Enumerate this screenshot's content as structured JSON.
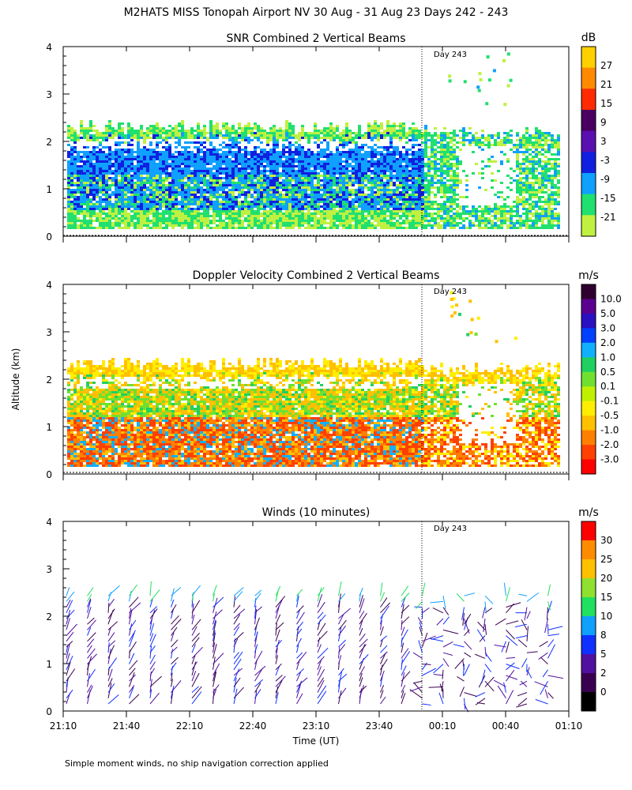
{
  "page_title": "M2HATS MISS Tonopah Airport NV  30 Aug - 31 Aug 23 Days 242 - 243",
  "footer_note": "Simple moment winds, no ship navigation correction applied",
  "chart_data": [
    {
      "type": "heatmap",
      "title": "SNR Combined 2 Vertical Beams",
      "ylabel": "",
      "ylim": [
        0,
        4
      ],
      "yticks": [
        "0",
        "1",
        "2",
        "3",
        "4"
      ],
      "day_marker": {
        "label": "Day 243",
        "time": "00:00"
      },
      "colorbar": {
        "unit": "dB",
        "labels": [
          "27",
          "21",
          "15",
          "9",
          "3",
          "-3",
          "-9",
          "-15",
          "-21"
        ],
        "colors": [
          "#ffd000",
          "#ff8a00",
          "#ff2a00",
          "#4a0060",
          "#5a10b0",
          "#1020e0",
          "#10a0ff",
          "#20e070",
          "#c0f040"
        ]
      },
      "profile_km": {
        "base": 0.15,
        "top_day242": 2.3,
        "top_day243": 2.2
      }
    },
    {
      "type": "heatmap",
      "title": "Doppler Velocity Combined 2 Vertical Beams",
      "ylabel": "Altitude (km)",
      "ylim": [
        0,
        4
      ],
      "yticks": [
        "0",
        "1",
        "2",
        "3",
        "4"
      ],
      "day_marker": {
        "label": "Day 243",
        "time": "00:00"
      },
      "colorbar": {
        "unit": "m/s",
        "labels": [
          "10.0",
          "5.0",
          "3.0",
          "2.0",
          "1.0",
          "0.5",
          "0.1",
          "-0.1",
          "-0.5",
          "-1.0",
          "-2.0",
          "-3.0"
        ],
        "colors": [
          "#300030",
          "#5a0090",
          "#2a10c0",
          "#0040ff",
          "#10b0ff",
          "#20d060",
          "#70e030",
          "#c0f000",
          "#ffee00",
          "#ffc000",
          "#ff8000",
          "#ff4000",
          "#ff0000"
        ]
      },
      "profile_km": {
        "base": 0.15,
        "top_day242": 2.3,
        "top_day243": 2.2
      }
    },
    {
      "type": "scatter",
      "title": "Winds (10 minutes)",
      "ylabel": "",
      "xlabel": "Time (UT)",
      "ylim": [
        0,
        4
      ],
      "yticks": [
        "0",
        "1",
        "2",
        "3",
        "4"
      ],
      "xticks": [
        "21:10",
        "21:40",
        "22:10",
        "22:40",
        "23:10",
        "23:40",
        "00:10",
        "00:40",
        "01:10"
      ],
      "day_marker": {
        "label": "Day 243",
        "time": "00:00"
      },
      "colorbar": {
        "unit": "m/s",
        "labels": [
          "30",
          "25",
          "20",
          "15",
          "10",
          "8",
          "5",
          "2",
          "0"
        ],
        "colors": [
          "#ff0000",
          "#ff8c00",
          "#ffc000",
          "#90e030",
          "#20e060",
          "#10a0ff",
          "#1030ff",
          "#5010a0",
          "#3a0050",
          "#000000"
        ]
      },
      "profile_count": 24
    }
  ]
}
